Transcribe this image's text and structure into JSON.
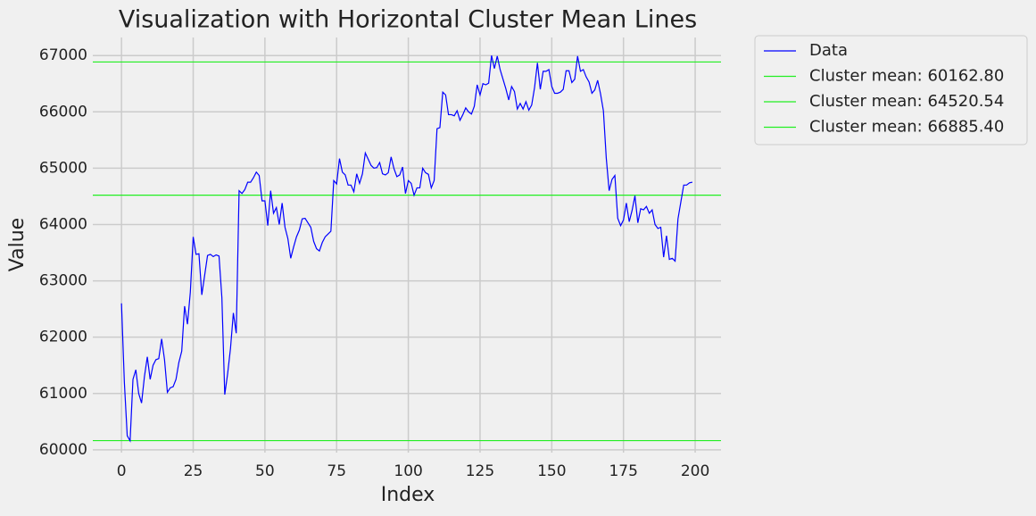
{
  "chart_data": {
    "type": "line",
    "title": "Visualization with Horizontal Cluster Mean Lines",
    "xlabel": "Index",
    "ylabel": "Value",
    "x": [
      0,
      1,
      2,
      3,
      4,
      5,
      6,
      7,
      8,
      9,
      10,
      11,
      12,
      13,
      14,
      15,
      16,
      17,
      18,
      19,
      20,
      21,
      22,
      23,
      24,
      25,
      26,
      27,
      28,
      29,
      30,
      31,
      32,
      33,
      34,
      35,
      36,
      37,
      38,
      39,
      40,
      41,
      42,
      43,
      44,
      45,
      46,
      47,
      48,
      49,
      50,
      51,
      52,
      53,
      54,
      55,
      56,
      57,
      58,
      59,
      60,
      61,
      62,
      63,
      64,
      65,
      66,
      67,
      68,
      69,
      70,
      71,
      72,
      73,
      74,
      75,
      76,
      77,
      78,
      79,
      80,
      81,
      82,
      83,
      84,
      85,
      86,
      87,
      88,
      89,
      90,
      91,
      92,
      93,
      94,
      95,
      96,
      97,
      98,
      99,
      100,
      101,
      102,
      103,
      104,
      105,
      106,
      107,
      108,
      109,
      110,
      111,
      112,
      113,
      114,
      115,
      116,
      117,
      118,
      119,
      120,
      121,
      122,
      123,
      124,
      125,
      126,
      127,
      128,
      129,
      130,
      131,
      132,
      133,
      134,
      135,
      136,
      137,
      138,
      139,
      140,
      141,
      142,
      143,
      144,
      145,
      146,
      147,
      148,
      149,
      150,
      151,
      152,
      153,
      154,
      155,
      156,
      157,
      158,
      159,
      160,
      161,
      162,
      163,
      164,
      165,
      166,
      167,
      168,
      169,
      170,
      171,
      172,
      173,
      174,
      175,
      176,
      177,
      178,
      179,
      180,
      181,
      182,
      183,
      184,
      185,
      186,
      187,
      188,
      189,
      190,
      191,
      192,
      193,
      194,
      195,
      196,
      197,
      198,
      199
    ],
    "series": [
      {
        "name": "Data",
        "color": "#0000ff",
        "values": [
          62600,
          61200,
          60250,
          60160,
          61250,
          61420,
          61000,
          60830,
          61300,
          61650,
          61250,
          61500,
          61600,
          61620,
          61970,
          61600,
          61020,
          61100,
          61120,
          61250,
          61550,
          61750,
          62550,
          62230,
          62800,
          63780,
          63470,
          63480,
          62750,
          63100,
          63450,
          63470,
          63430,
          63460,
          63440,
          62700,
          60980,
          61350,
          61800,
          62430,
          62070,
          64600,
          64550,
          64620,
          64750,
          64750,
          64830,
          64930,
          64870,
          64420,
          64420,
          63980,
          64600,
          64200,
          64300,
          64000,
          64380,
          63950,
          63750,
          63400,
          63600,
          63780,
          63900,
          64100,
          64110,
          64030,
          63950,
          63700,
          63570,
          63530,
          63680,
          63780,
          63830,
          63880,
          64780,
          64720,
          65170,
          64930,
          64880,
          64700,
          64700,
          64580,
          64900,
          64730,
          64900,
          65270,
          65160,
          65050,
          65000,
          65010,
          65100,
          64900,
          64880,
          64920,
          65200,
          64990,
          64850,
          64880,
          65020,
          64550,
          64780,
          64730,
          64520,
          64650,
          64650,
          65000,
          64920,
          64890,
          64650,
          64780,
          65700,
          65720,
          66350,
          66300,
          65950,
          65950,
          65930,
          66020,
          65850,
          65950,
          66070,
          66000,
          65960,
          66100,
          66480,
          66300,
          66500,
          66480,
          66510,
          67000,
          66770,
          66990,
          66750,
          66580,
          66410,
          66210,
          66450,
          66360,
          66050,
          66150,
          66050,
          66180,
          66030,
          66120,
          66430,
          66870,
          66400,
          66720,
          66720,
          66750,
          66450,
          66330,
          66330,
          66350,
          66400,
          66730,
          66730,
          66520,
          66580,
          66990,
          66720,
          66750,
          66620,
          66530,
          66330,
          66390,
          66560,
          66320,
          66020,
          65180,
          64600,
          64800,
          64870,
          64110,
          63980,
          64080,
          64380,
          64050,
          64250,
          64510,
          64030,
          64280,
          64260,
          64320,
          64200,
          64260,
          64000,
          63930,
          63950,
          63420,
          63800,
          63380,
          63400,
          63350,
          64100,
          64400,
          64700,
          64700,
          64740,
          64750
        ]
      }
    ],
    "hlines": [
      {
        "name": "Cluster mean: 60162.80",
        "value": 60162.8,
        "color": "#22ee22"
      },
      {
        "name": "Cluster mean: 64520.54",
        "value": 64520.54,
        "color": "#22ee22"
      },
      {
        "name": "Cluster mean: 66885.40",
        "value": 66885.4,
        "color": "#22ee22"
      }
    ],
    "xlim": [
      -10,
      209
    ],
    "ylim": [
      59950,
      67320
    ],
    "xticks": [
      0,
      25,
      50,
      75,
      100,
      125,
      150,
      175,
      200
    ],
    "yticks": [
      60000,
      61000,
      62000,
      63000,
      64000,
      65000,
      66000,
      67000
    ],
    "grid": true,
    "legend": "outside-upper-right"
  }
}
